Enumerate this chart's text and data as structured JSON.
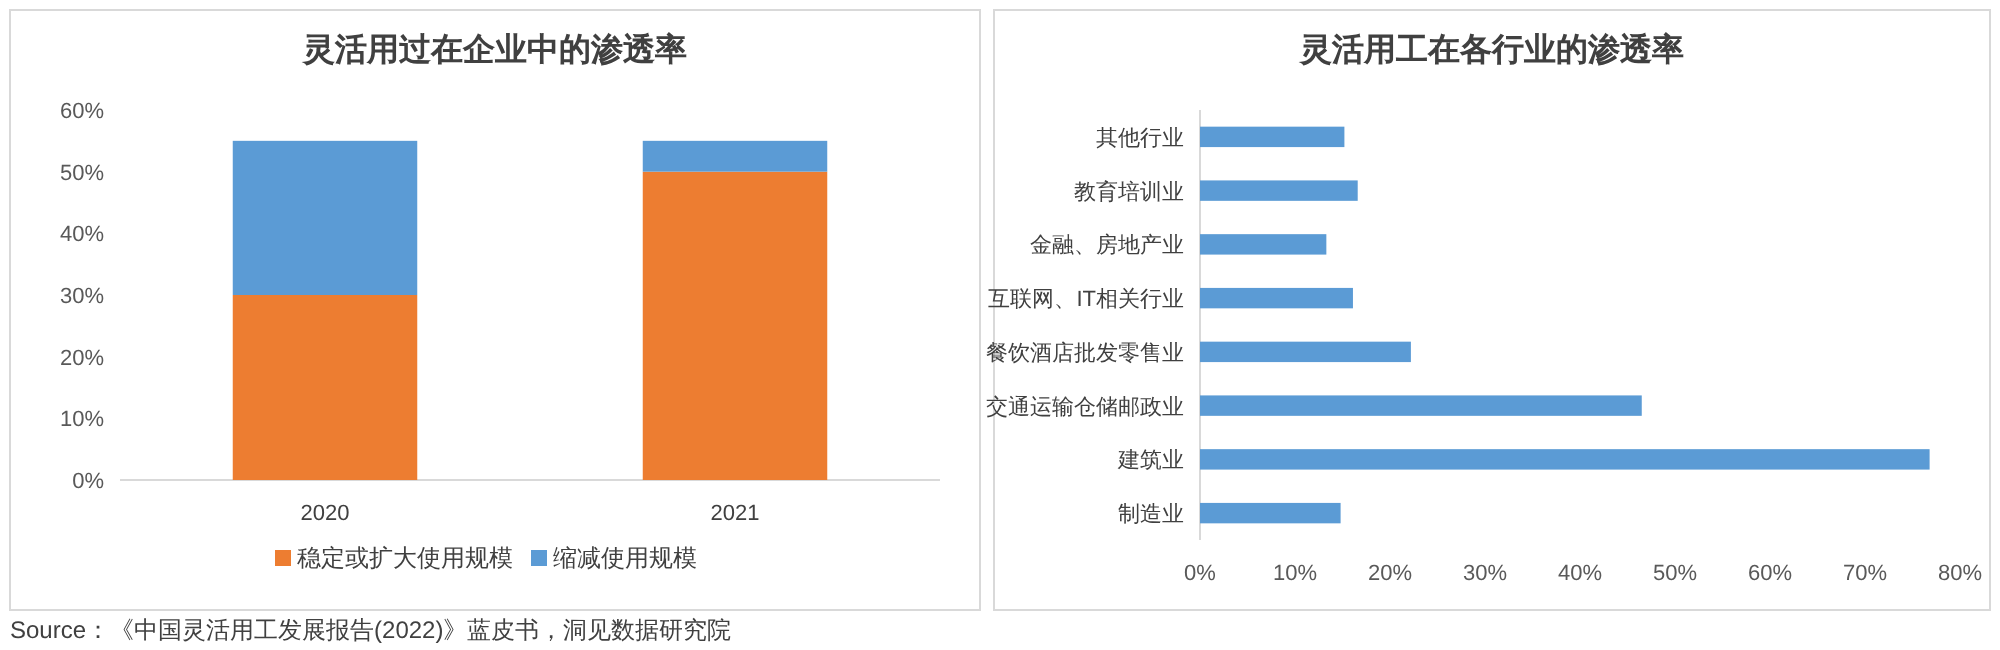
{
  "chart_data": [
    {
      "type": "bar",
      "title": "灵活用过在企业中的渗透率",
      "stacked": true,
      "categories": [
        "2020",
        "2021"
      ],
      "series": [
        {
          "name": "稳定或扩大使用规模",
          "color": "#ed7d31",
          "values": [
            30,
            50
          ]
        },
        {
          "name": "缩减使用规模",
          "color": "#5b9bd5",
          "values": [
            25,
            5
          ]
        }
      ],
      "ylim": [
        0,
        60
      ],
      "yticks": [
        {
          "value": 0,
          "label": "0%"
        },
        {
          "value": 10,
          "label": "10%"
        },
        {
          "value": 20,
          "label": "20%"
        },
        {
          "value": 30,
          "label": "30%"
        },
        {
          "value": 40,
          "label": "40%"
        },
        {
          "value": 50,
          "label": "50%"
        },
        {
          "value": 60,
          "label": "60%"
        }
      ],
      "legend": "bottom",
      "grid": false,
      "annotations": [
        "Source：《中国灵活用工发展报告(2022)》蓝皮书，洞见数据研究院"
      ]
    },
    {
      "type": "bar",
      "title": "灵活用工在各行业的渗透率",
      "orientation": "horizontal",
      "categories": [
        "其他行业",
        "教育培训业",
        "金融、房地产业",
        "互联网、IT相关行业",
        "餐饮酒店批发零售业",
        "交通运输仓储邮政业",
        "建筑业",
        "制造业"
      ],
      "values": [
        15.2,
        16.6,
        13.3,
        16.1,
        22.2,
        46.5,
        76.8,
        14.8
      ],
      "color": "#5b9bd5",
      "xlim": [
        0,
        80
      ],
      "xticks": [
        {
          "value": 0,
          "label": "0%"
        },
        {
          "value": 10,
          "label": "10%"
        },
        {
          "value": 20,
          "label": "20%"
        },
        {
          "value": 30,
          "label": "30%"
        },
        {
          "value": 40,
          "label": "40%"
        },
        {
          "value": 50,
          "label": "50%"
        },
        {
          "value": 60,
          "label": "60%"
        },
        {
          "value": 70,
          "label": "70%"
        },
        {
          "value": 80,
          "label": "80%"
        }
      ],
      "grid": false
    }
  ]
}
